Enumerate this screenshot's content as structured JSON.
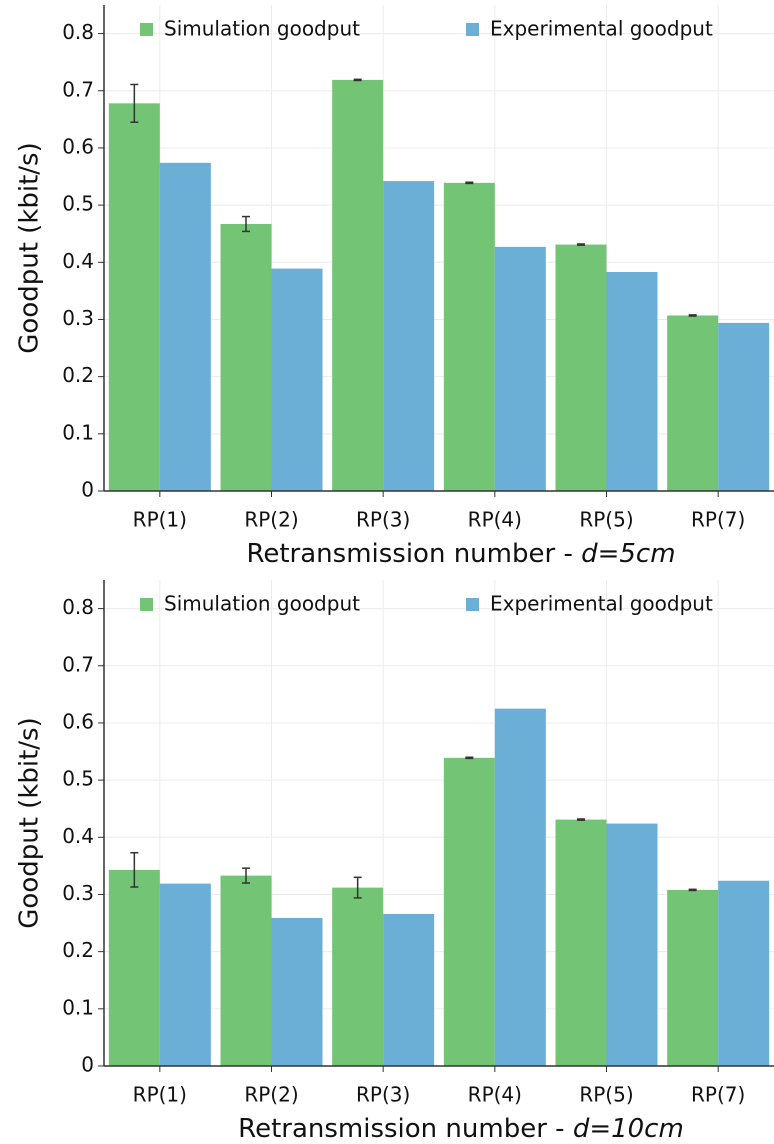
{
  "chart_data": [
    {
      "type": "bar",
      "ylabel": "Goodput (kbit/s)",
      "xlabel": [
        "Retransmission number -",
        "d=5cm"
      ],
      "categories": [
        "RP(1)",
        "RP(2)",
        "RP(3)",
        "RP(4)",
        "RP(5)",
        "RP(7)"
      ],
      "series": [
        {
          "name": "Simulation goodput",
          "color": "#74c476",
          "values": [
            0.678,
            0.467,
            0.719,
            0.539,
            0.431,
            0.307
          ],
          "errors": [
            0.033,
            0.013,
            0.001,
            0.001,
            0.001,
            0.001
          ]
        },
        {
          "name": "Experimental goodput",
          "color": "#6baed6",
          "values": [
            0.574,
            0.389,
            0.542,
            0.427,
            0.383,
            0.294
          ]
        }
      ],
      "ylim": [
        0,
        0.85
      ],
      "yticks": [
        0,
        0.1,
        0.2,
        0.3,
        0.4,
        0.5,
        0.6,
        0.7,
        0.8
      ],
      "grid": true
    },
    {
      "type": "bar",
      "ylabel": "Goodput (kbit/s)",
      "xlabel": [
        "Retransmission number -",
        "d=10cm"
      ],
      "categories": [
        "RP(1)",
        "RP(2)",
        "RP(3)",
        "RP(4)",
        "RP(5)",
        "RP(7)"
      ],
      "series": [
        {
          "name": "Simulation goodput",
          "color": "#74c476",
          "values": [
            0.343,
            0.333,
            0.312,
            0.539,
            0.431,
            0.308
          ],
          "errors": [
            0.03,
            0.013,
            0.018,
            0.001,
            0.001,
            0.001
          ]
        },
        {
          "name": "Experimental goodput",
          "color": "#6baed6",
          "values": [
            0.319,
            0.259,
            0.266,
            0.625,
            0.424,
            0.324
          ]
        }
      ],
      "ylim": [
        0,
        0.85
      ],
      "yticks": [
        0,
        0.1,
        0.2,
        0.3,
        0.4,
        0.5,
        0.6,
        0.7,
        0.8
      ],
      "grid": true
    }
  ]
}
